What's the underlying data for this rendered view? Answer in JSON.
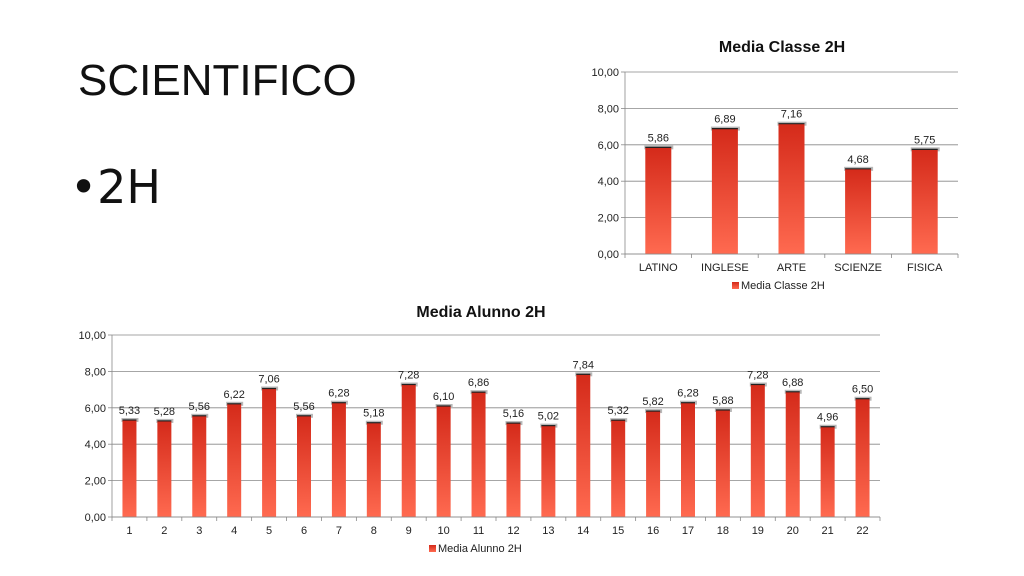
{
  "slide": {
    "title": "SCIENTIFICO",
    "bullet": "•2H"
  },
  "chart_data": [
    {
      "type": "bar",
      "title": "Media Classe 2H",
      "categories": [
        "LATINO",
        "INGLESE",
        "ARTE",
        "SCIENZE",
        "FISICA"
      ],
      "series": [
        {
          "name": "Media Classe 2H",
          "values": [
            5.86,
            6.89,
            7.16,
            4.68,
            5.75
          ]
        }
      ],
      "data_labels": [
        "5,86",
        "6,89",
        "7,16",
        "4,68",
        "5,75"
      ],
      "ylim": [
        0,
        10
      ],
      "y_ticks": [
        "0,00",
        "2,00",
        "4,00",
        "6,00",
        "8,00",
        "10,00"
      ],
      "grid": true,
      "legend": "bottom",
      "bar_color_top": "#d42a1a",
      "bar_color_bottom": "#ff6a50"
    },
    {
      "type": "bar",
      "title": "Media Alunno 2H",
      "categories": [
        "1",
        "2",
        "3",
        "4",
        "5",
        "6",
        "7",
        "8",
        "9",
        "10",
        "11",
        "12",
        "13",
        "14",
        "15",
        "16",
        "17",
        "18",
        "19",
        "20",
        "21",
        "22"
      ],
      "series": [
        {
          "name": "Media Alunno 2H",
          "values": [
            5.33,
            5.28,
            5.56,
            6.22,
            7.06,
            5.56,
            6.28,
            5.18,
            7.28,
            6.1,
            6.86,
            5.16,
            5.02,
            7.84,
            5.32,
            5.82,
            6.28,
            5.88,
            7.28,
            6.88,
            4.96,
            6.5
          ]
        }
      ],
      "data_labels": [
        "5,33",
        "5,28",
        "5,56",
        "6,22",
        "7,06",
        "5,56",
        "6,28",
        "5,18",
        "7,28",
        "6,10",
        "6,86",
        "5,16",
        "5,02",
        "7,84",
        "5,32",
        "5,82",
        "6,28",
        "5,88",
        "7,28",
        "6,88",
        "4,96",
        "6,50"
      ],
      "ylim": [
        0,
        10
      ],
      "y_ticks": [
        "0,00",
        "2,00",
        "4,00",
        "6,00",
        "8,00",
        "10,00"
      ],
      "grid": true,
      "legend": "bottom",
      "bar_color_top": "#d42a1a",
      "bar_color_bottom": "#ff6a50"
    }
  ]
}
